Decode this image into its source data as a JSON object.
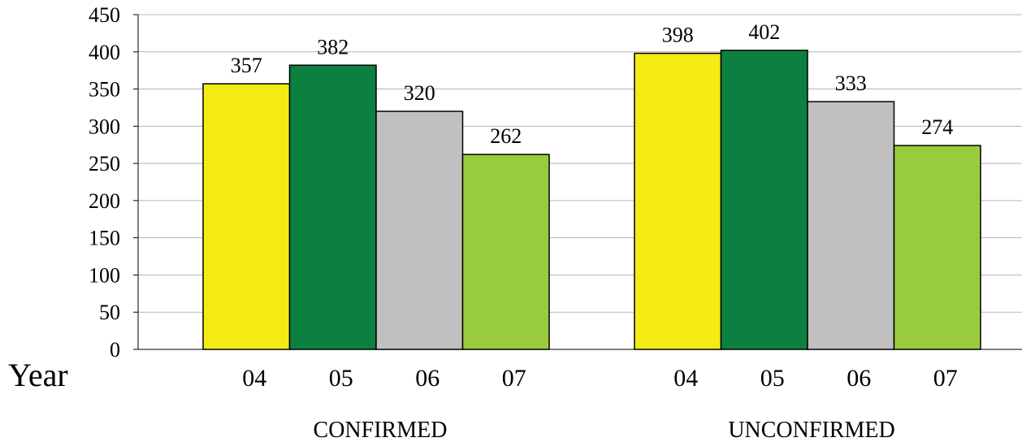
{
  "chart_data": {
    "type": "bar",
    "title": "",
    "xlabel": "Year",
    "ylabel": "",
    "ylim": [
      0,
      450
    ],
    "yticks": [
      0,
      50,
      100,
      150,
      200,
      250,
      300,
      350,
      400,
      450
    ],
    "grid": true,
    "legend": "none",
    "categories": [
      "04",
      "05",
      "06",
      "07"
    ],
    "groups": [
      {
        "name": "CONFIRMED",
        "values": [
          357,
          382,
          320,
          262
        ],
        "value_labels": [
          "357",
          "382",
          "320",
          "262"
        ]
      },
      {
        "name": "UNCONFIRMED",
        "values": [
          398,
          402,
          333,
          274
        ],
        "value_labels": [
          "398",
          "402",
          "333",
          "274"
        ]
      }
    ],
    "colors": [
      "#f5eb14",
      "#0b8040",
      "#c0c0c0",
      "#99cc3c"
    ]
  }
}
